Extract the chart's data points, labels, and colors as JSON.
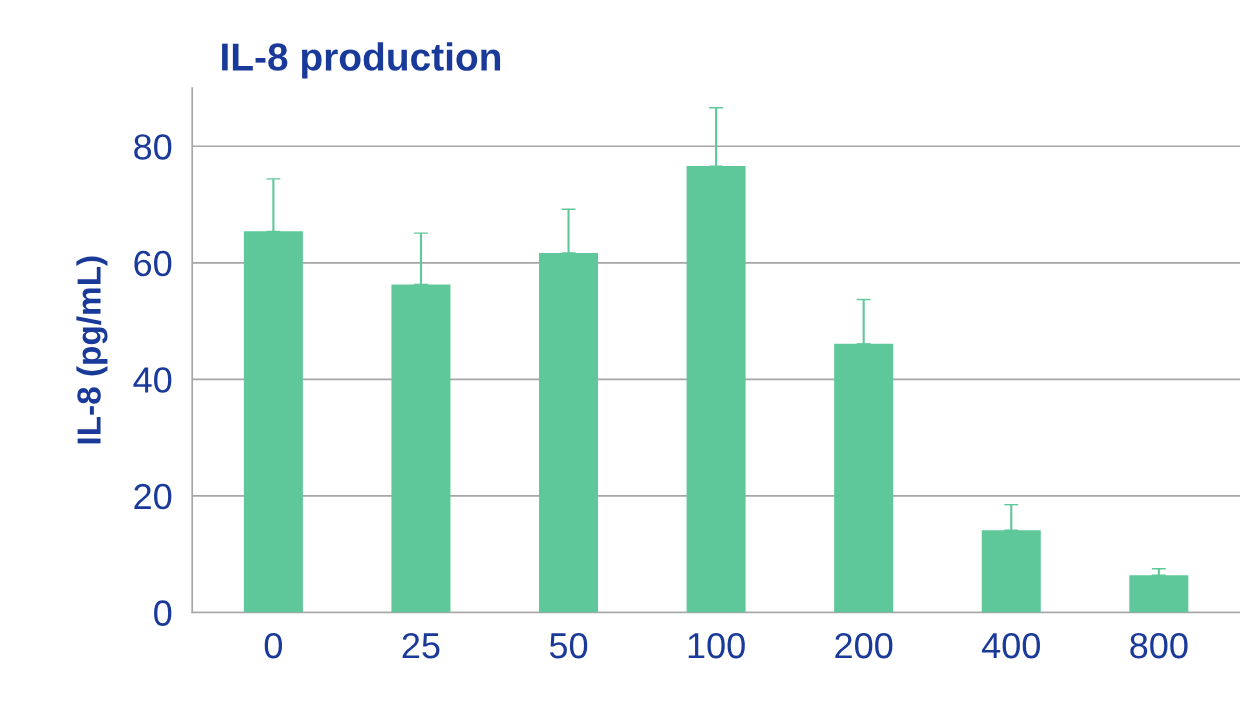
{
  "chart_data": {
    "type": "bar",
    "title": "IL-8 production",
    "ylabel": "IL-8 (pg/mL)",
    "categories": [
      "0",
      "25",
      "50",
      "100",
      "200",
      "400",
      "800"
    ],
    "values": [
      65.4,
      56.3,
      61.7,
      76.6,
      46.1,
      14.1,
      6.4
    ],
    "errors": [
      [
        65.4,
        74.4
      ],
      [
        56.3,
        65.1
      ],
      [
        61.7,
        69.2
      ],
      [
        76.6,
        86.6
      ],
      [
        46.1,
        53.7
      ],
      [
        14.1,
        18.5
      ],
      [
        6.4,
        7.5
      ]
    ],
    "color": "#5fc89a",
    "ylim": [
      0,
      90
    ],
    "yticks": [
      0,
      20,
      40,
      60,
      80
    ],
    "grid": "y"
  }
}
